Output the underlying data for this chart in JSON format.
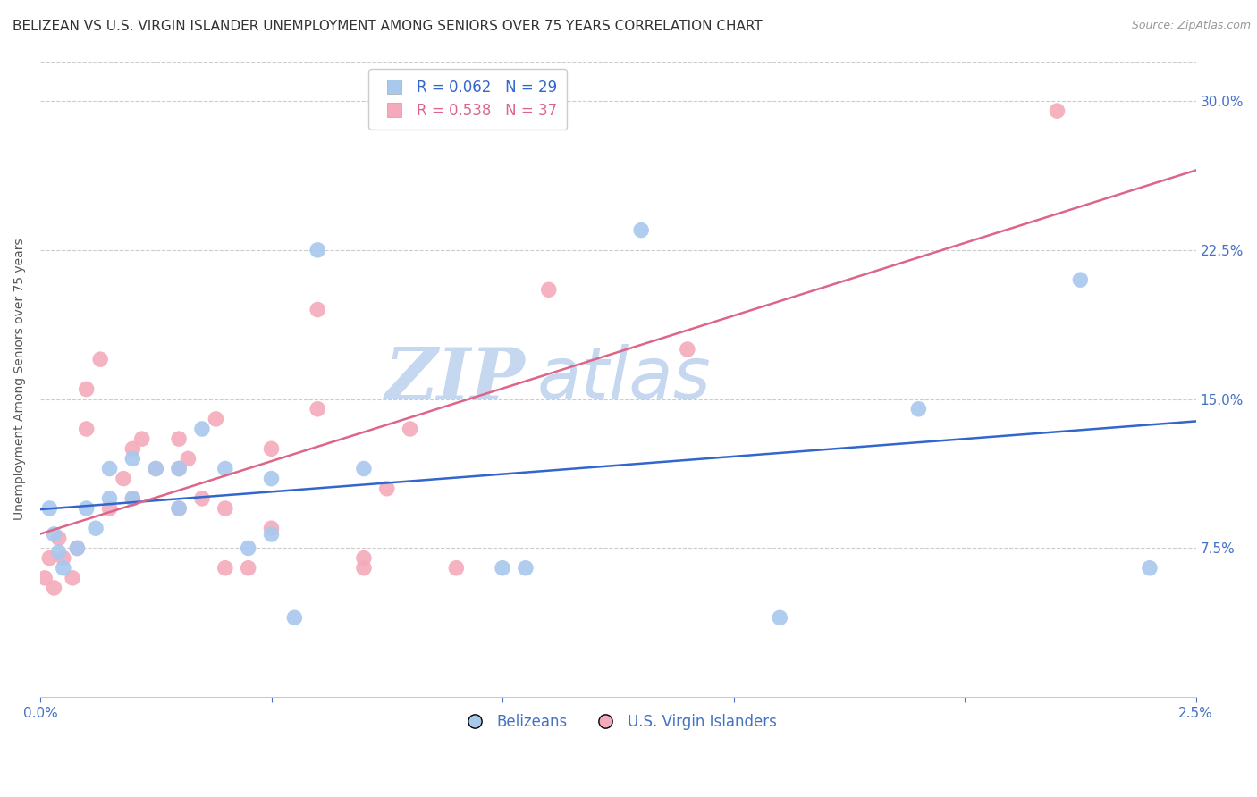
{
  "title": "BELIZEAN VS U.S. VIRGIN ISLANDER UNEMPLOYMENT AMONG SENIORS OVER 75 YEARS CORRELATION CHART",
  "source": "Source: ZipAtlas.com",
  "ylabel": "Unemployment Among Seniors over 75 years",
  "xlim": [
    0.0,
    0.025
  ],
  "ylim": [
    0.0,
    0.32
  ],
  "xticks": [
    0.0,
    0.005,
    0.01,
    0.015,
    0.02,
    0.025
  ],
  "xticklabels": [
    "0.0%",
    "",
    "",
    "",
    "",
    "2.5%"
  ],
  "yticks": [
    0.0,
    0.075,
    0.15,
    0.225,
    0.3
  ],
  "yticklabels": [
    "",
    "7.5%",
    "15.0%",
    "22.5%",
    "30.0%"
  ],
  "belizean_color": "#A8C8EE",
  "virgin_islander_color": "#F4AABB",
  "belizean_line_color": "#3366CC",
  "virgin_islander_line_color": "#DD6688",
  "background_color": "#FFFFFF",
  "watermark_zip": "ZIP",
  "watermark_atlas": "atlas",
  "watermark_color": "#C5D8F0",
  "legend_r_belizean": "R = 0.062",
  "legend_n_belizean": "N = 29",
  "legend_r_virgin": "R = 0.538",
  "legend_n_virgin": "N = 37",
  "belizean_x": [
    0.0002,
    0.0003,
    0.0004,
    0.0005,
    0.0008,
    0.001,
    0.0012,
    0.0015,
    0.0015,
    0.002,
    0.002,
    0.0025,
    0.003,
    0.003,
    0.0035,
    0.004,
    0.0045,
    0.005,
    0.005,
    0.0055,
    0.006,
    0.007,
    0.01,
    0.0105,
    0.013,
    0.016,
    0.019,
    0.0225,
    0.024
  ],
  "belizean_y": [
    0.095,
    0.082,
    0.073,
    0.065,
    0.075,
    0.095,
    0.085,
    0.1,
    0.115,
    0.1,
    0.12,
    0.115,
    0.115,
    0.095,
    0.135,
    0.115,
    0.075,
    0.11,
    0.082,
    0.04,
    0.225,
    0.115,
    0.065,
    0.065,
    0.235,
    0.04,
    0.145,
    0.21,
    0.065
  ],
  "virgin_x": [
    0.0001,
    0.0002,
    0.0003,
    0.0004,
    0.0005,
    0.0007,
    0.0008,
    0.001,
    0.001,
    0.0013,
    0.0015,
    0.0018,
    0.002,
    0.002,
    0.0022,
    0.0025,
    0.003,
    0.003,
    0.003,
    0.0032,
    0.0035,
    0.0038,
    0.004,
    0.004,
    0.0045,
    0.005,
    0.005,
    0.006,
    0.006,
    0.007,
    0.007,
    0.0075,
    0.008,
    0.009,
    0.011,
    0.014,
    0.022
  ],
  "virgin_y": [
    0.06,
    0.07,
    0.055,
    0.08,
    0.07,
    0.06,
    0.075,
    0.155,
    0.135,
    0.17,
    0.095,
    0.11,
    0.125,
    0.1,
    0.13,
    0.115,
    0.115,
    0.13,
    0.095,
    0.12,
    0.1,
    0.14,
    0.065,
    0.095,
    0.065,
    0.085,
    0.125,
    0.195,
    0.145,
    0.07,
    0.065,
    0.105,
    0.135,
    0.065,
    0.205,
    0.175,
    0.295
  ],
  "title_fontsize": 11,
  "axis_label_fontsize": 10,
  "tick_fontsize": 11,
  "legend_fontsize": 12,
  "source_fontsize": 9
}
